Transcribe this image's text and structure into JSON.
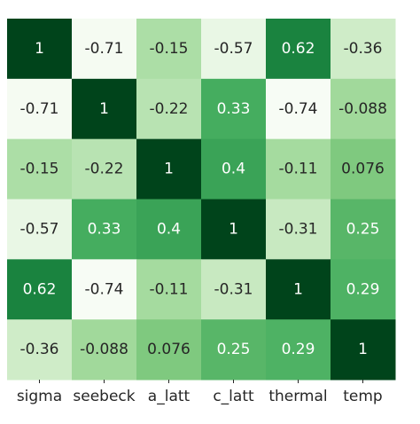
{
  "chart_data": {
    "type": "heatmap",
    "row_labels": [
      "",
      "",
      "",
      "",
      "",
      ""
    ],
    "col_labels": [
      "sigma",
      "seebeck",
      "a_latt",
      "c_latt",
      "thermal",
      "temp"
    ],
    "values": [
      [
        1,
        -0.71,
        -0.15,
        -0.57,
        0.62,
        -0.36
      ],
      [
        -0.71,
        1,
        -0.22,
        0.33,
        -0.74,
        -0.088
      ],
      [
        -0.15,
        -0.22,
        1,
        0.4,
        -0.11,
        0.076
      ],
      [
        -0.57,
        0.33,
        0.4,
        1,
        -0.31,
        0.25
      ],
      [
        0.62,
        -0.74,
        -0.11,
        -0.31,
        1,
        0.29
      ],
      [
        -0.36,
        -0.088,
        0.076,
        0.25,
        0.29,
        1
      ]
    ],
    "cell_text": [
      [
        "1",
        "-0.71",
        "-0.15",
        "-0.57",
        "0.62",
        "-0.36"
      ],
      [
        "-0.71",
        "1",
        "-0.22",
        "0.33",
        "-0.74",
        "-0.088"
      ],
      [
        "-0.15",
        "-0.22",
        "1",
        "0.4",
        "-0.11",
        "0.076"
      ],
      [
        "-0.57",
        "0.33",
        "0.4",
        "1",
        "-0.31",
        "0.25"
      ],
      [
        "0.62",
        "-0.74",
        "-0.11",
        "-0.31",
        "1",
        "0.29"
      ],
      [
        "-0.36",
        "-0.088",
        "0.076",
        "0.25",
        "0.29",
        "1"
      ]
    ],
    "colormap": "Greens",
    "value_range": [
      -0.74,
      1
    ],
    "colorbar": false,
    "grid": false,
    "title": "",
    "xlabel": "",
    "ylabel": ""
  }
}
